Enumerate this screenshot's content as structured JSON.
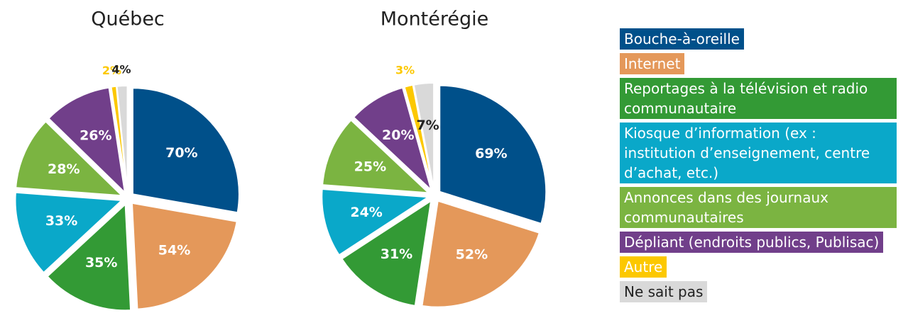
{
  "chart_data": [
    {
      "type": "pie",
      "title": "Québec",
      "categories": [
        "Bouche-à-oreille",
        "Internet",
        "Reportages à la télévision et radio communautaire",
        "Kiosque d’information (ex : institution d’enseignement, centre d’achat, etc.)",
        "Annonces dans des journaux communautaires",
        "Dépliant (endroits publics, Publisac)",
        "Autre",
        "Ne sait pas"
      ],
      "values": [
        70,
        54,
        35,
        33,
        28,
        26,
        2,
        4
      ],
      "value_labels": [
        "70%",
        "54%",
        "35%",
        "33%",
        "28%",
        "26%",
        "2%",
        "4%"
      ],
      "colors": [
        "#00508a",
        "#e4985a",
        "#339a35",
        "#0aa8c9",
        "#7bb441",
        "#713f8a",
        "#fcc800",
        "#d9d9d9"
      ],
      "label_colors": [
        "#ffffff",
        "#ffffff",
        "#ffffff",
        "#ffffff",
        "#ffffff",
        "#ffffff",
        "#fcc800",
        "#222222"
      ]
    },
    {
      "type": "pie",
      "title": "Montérégie",
      "categories": [
        "Bouche-à-oreille",
        "Internet",
        "Reportages à la télévision et radio communautaire",
        "Kiosque d’information (ex : institution d’enseignement, centre d’achat, etc.)",
        "Annonces dans des journaux communautaires",
        "Dépliant (endroits publics, Publisac)",
        "Autre",
        "Ne sait pas"
      ],
      "values": [
        69,
        52,
        31,
        24,
        25,
        20,
        3,
        7
      ],
      "value_labels": [
        "69%",
        "52%",
        "31%",
        "24%",
        "25%",
        "20%",
        "3%",
        "7%"
      ],
      "colors": [
        "#00508a",
        "#e4985a",
        "#339a35",
        "#0aa8c9",
        "#7bb441",
        "#713f8a",
        "#fcc800",
        "#d9d9d9"
      ],
      "label_colors": [
        "#ffffff",
        "#ffffff",
        "#ffffff",
        "#ffffff",
        "#ffffff",
        "#ffffff",
        "#fcc800",
        "#222222"
      ]
    }
  ],
  "legend_text_colors": [
    "#ffffff",
    "#ffffff",
    "#ffffff",
    "#ffffff",
    "#ffffff",
    "#ffffff",
    "#ffffff",
    "#222222"
  ]
}
